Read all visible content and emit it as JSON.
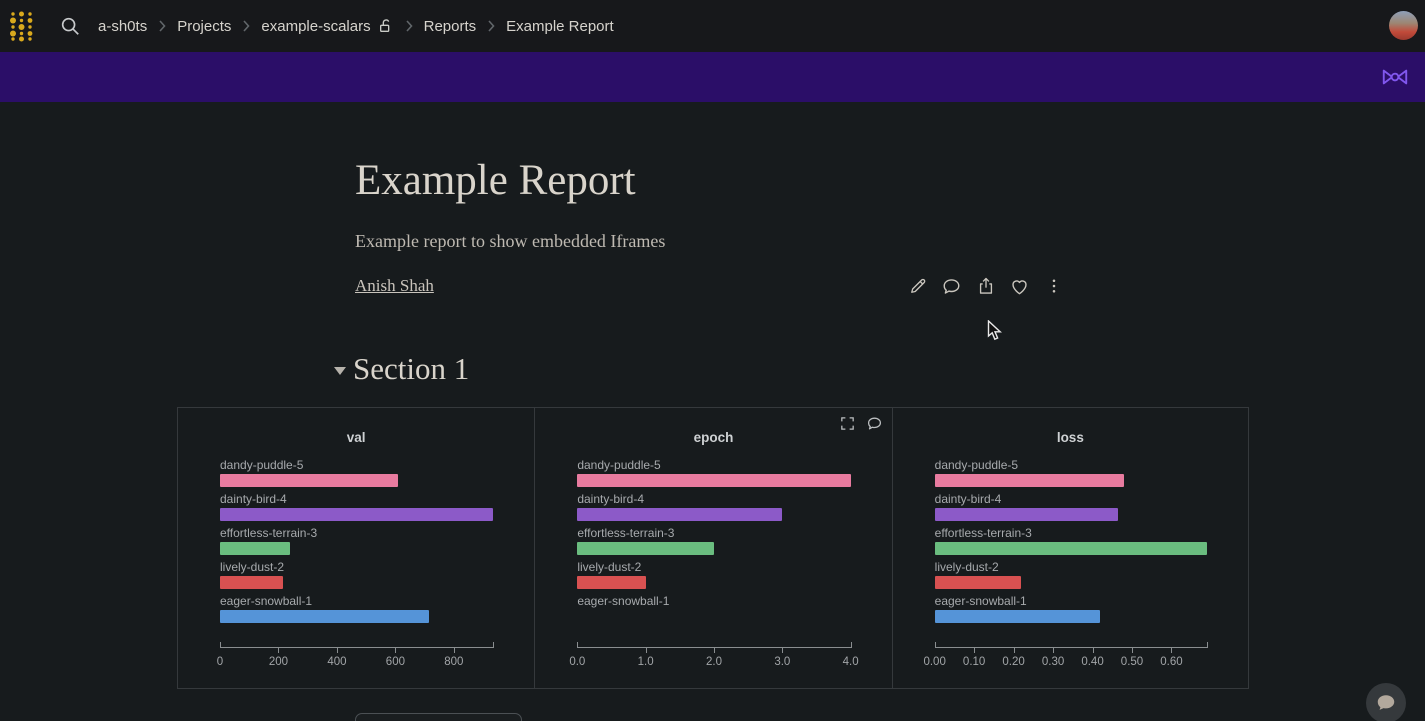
{
  "navbar": {
    "breadcrumb": [
      "a-sh0ts",
      "Projects",
      "example-scalars",
      "Reports",
      "Example Report"
    ],
    "icons": [
      "wandb-logo",
      "search",
      "unlock",
      "avatar"
    ]
  },
  "report": {
    "title": "Example Report",
    "description": "Example report to show embedded Iframes",
    "author": "Anish Shah",
    "action_icons": [
      "edit-pencil",
      "comment",
      "share",
      "like-heart",
      "more-kebab"
    ]
  },
  "section": {
    "title": "Section 1"
  },
  "panel_hover_icons": [
    "fullscreen",
    "comment"
  ],
  "colors": {
    "banner": "#2b0e68",
    "banner_icon": "#8157ee",
    "navbar_bg": "#17181b",
    "page_bg": "#171b1d",
    "logo_gold": "#d9a91d",
    "run_colors": [
      "#e87b9f",
      "#8c5ac8",
      "#6abd7f",
      "#d85151",
      "#5594d8"
    ]
  },
  "chart_data": [
    {
      "type": "bar",
      "orientation": "horizontal",
      "title": "val",
      "categories": [
        "dandy-puddle-5",
        "dainty-bird-4",
        "effortless-terrain-3",
        "lively-dust-2",
        "eager-snowball-1"
      ],
      "values": [
        610,
        935,
        240,
        215,
        715
      ],
      "xlim": [
        0,
        935
      ],
      "ticks": [
        {
          "value": 0,
          "label": "0"
        },
        {
          "value": 200,
          "label": "200"
        },
        {
          "value": 400,
          "label": "400"
        },
        {
          "value": 600,
          "label": "600"
        },
        {
          "value": 800,
          "label": "800"
        }
      ],
      "grid": false,
      "legend": false
    },
    {
      "type": "bar",
      "orientation": "horizontal",
      "title": "epoch",
      "categories": [
        "dandy-puddle-5",
        "dainty-bird-4",
        "effortless-terrain-3",
        "lively-dust-2",
        "eager-snowball-1"
      ],
      "values": [
        4,
        3,
        2,
        1,
        0
      ],
      "xlim": [
        0,
        4
      ],
      "ticks": [
        {
          "value": 0,
          "label": "0.0"
        },
        {
          "value": 1,
          "label": "1.0"
        },
        {
          "value": 2,
          "label": "2.0"
        },
        {
          "value": 3,
          "label": "3.0"
        },
        {
          "value": 4,
          "label": "4.0"
        }
      ],
      "grid": false,
      "legend": false
    },
    {
      "type": "bar",
      "orientation": "horizontal",
      "title": "loss",
      "categories": [
        "dandy-puddle-5",
        "dainty-bird-4",
        "effortless-terrain-3",
        "lively-dust-2",
        "eager-snowball-1"
      ],
      "values": [
        0.48,
        0.465,
        0.69,
        0.22,
        0.42
      ],
      "xlim": [
        0,
        0.69
      ],
      "ticks": [
        {
          "value": 0.0,
          "label": "0.00"
        },
        {
          "value": 0.1,
          "label": "0.10"
        },
        {
          "value": 0.2,
          "label": "0.20"
        },
        {
          "value": 0.3,
          "label": "0.30"
        },
        {
          "value": 0.4,
          "label": "0.40"
        },
        {
          "value": 0.5,
          "label": "0.50"
        },
        {
          "value": 0.6,
          "label": "0.60"
        }
      ],
      "grid": false,
      "legend": false
    }
  ]
}
